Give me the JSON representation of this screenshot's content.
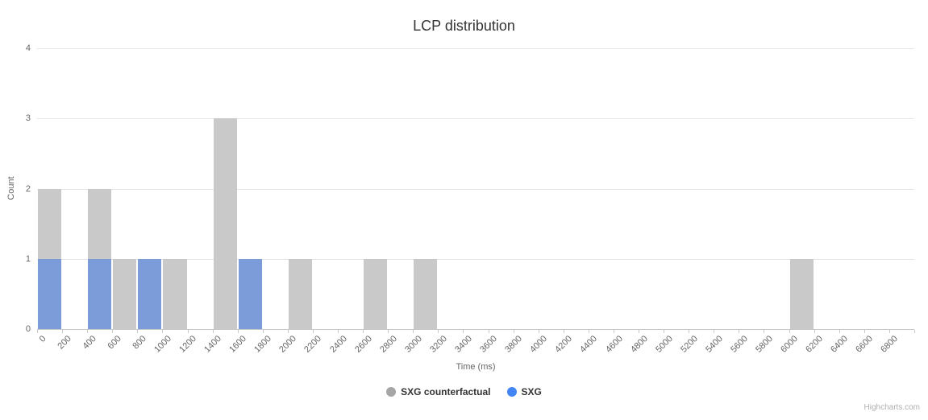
{
  "title": "LCP distribution",
  "x_axis": {
    "title": "Time (ms)"
  },
  "y_axis": {
    "title": "Count",
    "ticks": [
      0,
      1,
      2,
      3,
      4
    ]
  },
  "legend": [
    {
      "label": "SXG counterfactual",
      "color": "#a6a6a6"
    },
    {
      "label": "SXG",
      "color": "#4285f4"
    }
  ],
  "credits": "Highcharts.com",
  "chart_data": {
    "type": "bar",
    "title": "LCP distribution",
    "xlabel": "Time (ms)",
    "ylabel": "Count",
    "ylim": [
      0,
      4
    ],
    "grid": true,
    "legend_position": "bottom",
    "bin_width_ms": 200,
    "categories": [
      0,
      200,
      400,
      600,
      800,
      1000,
      1200,
      1400,
      1600,
      1800,
      2000,
      2200,
      2400,
      2600,
      2800,
      3000,
      3200,
      3400,
      3600,
      3800,
      4000,
      4200,
      4400,
      4600,
      4800,
      5000,
      5200,
      5400,
      5600,
      5800,
      6000,
      6200,
      6400,
      6600,
      6800
    ],
    "series": [
      {
        "name": "SXG counterfactual",
        "color": "#a6a6a6",
        "bar_color": "#c9c9c9",
        "values": [
          2,
          0,
          2,
          1,
          0,
          1,
          0,
          3,
          0,
          0,
          1,
          0,
          0,
          1,
          0,
          1,
          0,
          0,
          0,
          0,
          0,
          0,
          0,
          0,
          0,
          0,
          0,
          0,
          0,
          0,
          1,
          0,
          0,
          0,
          0
        ]
      },
      {
        "name": "SXG",
        "color": "#4285f4",
        "bar_color": "#7b9bd9",
        "values": [
          1,
          0,
          1,
          0,
          1,
          0,
          0,
          0,
          1,
          0,
          0,
          0,
          0,
          0,
          0,
          0,
          0,
          0,
          0,
          0,
          0,
          0,
          0,
          0,
          0,
          0,
          0,
          0,
          0,
          0,
          0,
          0,
          0,
          0,
          0
        ]
      }
    ]
  }
}
